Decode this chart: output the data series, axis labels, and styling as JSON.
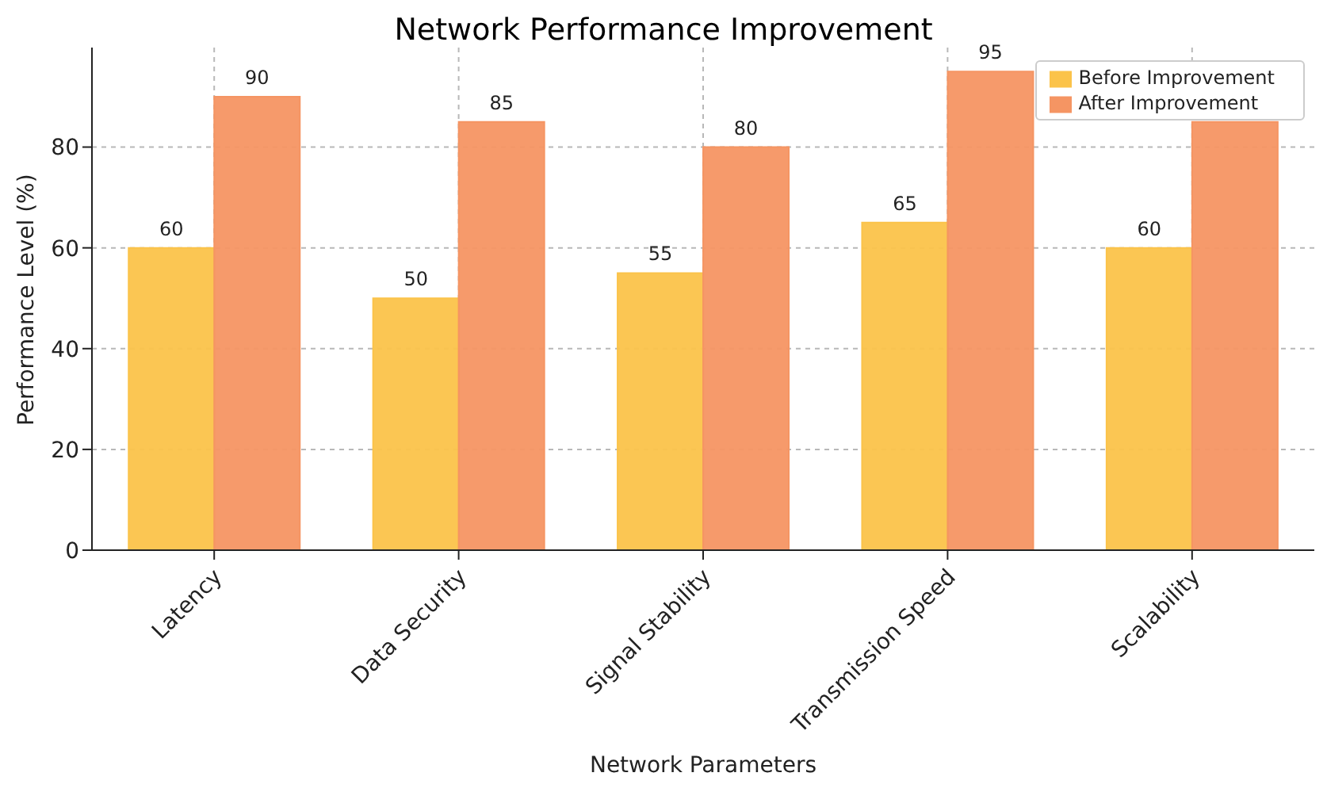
{
  "chart_data": {
    "type": "bar",
    "title": "Network Performance Improvement",
    "xlabel": "Network Parameters",
    "ylabel": "Performance Level (%)",
    "categories": [
      "Latency",
      "Data Security",
      "Signal Stability",
      "Transmission Speed",
      "Scalability"
    ],
    "series": [
      {
        "name": "Before Improvement",
        "color": "#fbc34a",
        "values": [
          60,
          50,
          55,
          65,
          60
        ],
        "value_labels": [
          "60",
          "50",
          "55",
          "65",
          "60"
        ]
      },
      {
        "name": "After Improvement",
        "color": "#f59563",
        "values": [
          90,
          85,
          80,
          95,
          85
        ],
        "value_labels": [
          "90",
          "85",
          "80",
          "95",
          null
        ]
      }
    ],
    "ylim": [
      0,
      99.75
    ],
    "yticks": [
      0,
      20,
      40,
      60,
      80
    ],
    "grid": true,
    "legend": "top right"
  }
}
